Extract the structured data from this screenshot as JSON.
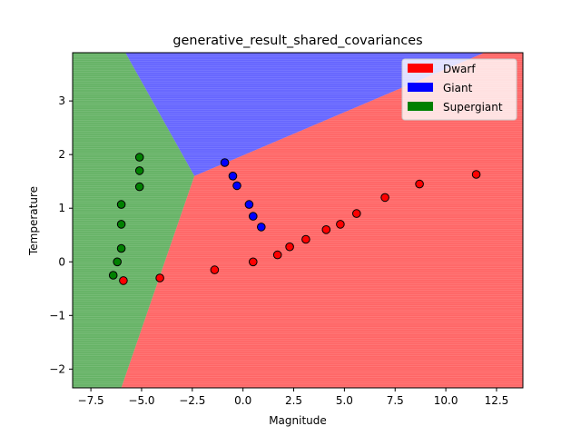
{
  "chart_data": {
    "type": "scatter",
    "title": "generative_result_shared_covariances",
    "xlabel": "Magnitude",
    "ylabel": "Temperature",
    "xlim": [
      -8.4,
      13.8
    ],
    "ylim": [
      -2.35,
      3.9
    ],
    "xticks": [
      -7.5,
      -5.0,
      -2.5,
      0.0,
      2.5,
      5.0,
      7.5,
      10.0,
      12.5
    ],
    "xtick_labels": [
      "−7.5",
      "−5.0",
      "−2.5",
      "0.0",
      "2.5",
      "5.0",
      "7.5",
      "10.0",
      "12.5"
    ],
    "yticks": [
      -2,
      -1,
      0,
      1,
      2,
      3
    ],
    "ytick_labels": [
      "−2",
      "−1",
      "0",
      "1",
      "2",
      "3"
    ],
    "grid": false,
    "legend_position": "top-right",
    "decision_regions": [
      {
        "class": "Dwarf",
        "color": "#ff0000",
        "polygon": [
          [
            -2.4,
            1.6
          ],
          [
            11.9,
            3.9
          ],
          [
            13.8,
            3.9
          ],
          [
            13.8,
            -2.35
          ],
          [
            -6.0,
            -2.35
          ]
        ]
      },
      {
        "class": "Giant",
        "color": "#0000ff",
        "polygon": [
          [
            -5.8,
            3.9
          ],
          [
            11.9,
            3.9
          ],
          [
            -2.4,
            1.6
          ]
        ]
      },
      {
        "class": "Supergiant",
        "color": "#008000",
        "polygon": [
          [
            -8.4,
            3.9
          ],
          [
            -5.8,
            3.9
          ],
          [
            -2.4,
            1.6
          ],
          [
            -6.0,
            -2.35
          ],
          [
            -8.4,
            -2.35
          ]
        ]
      }
    ],
    "series": [
      {
        "name": "Dwarf",
        "color": "#ff0000",
        "points": [
          [
            -5.9,
            -0.35
          ],
          [
            -4.1,
            -0.3
          ],
          [
            -1.4,
            -0.15
          ],
          [
            0.5,
            0.0
          ],
          [
            1.7,
            0.13
          ],
          [
            2.3,
            0.28
          ],
          [
            3.1,
            0.42
          ],
          [
            4.1,
            0.6
          ],
          [
            4.8,
            0.7
          ],
          [
            5.6,
            0.9
          ],
          [
            7.0,
            1.2
          ],
          [
            8.7,
            1.45
          ],
          [
            11.5,
            1.63
          ]
        ]
      },
      {
        "name": "Giant",
        "color": "#0000ff",
        "points": [
          [
            -0.9,
            1.85
          ],
          [
            -0.5,
            1.6
          ],
          [
            -0.3,
            1.42
          ],
          [
            0.3,
            1.07
          ],
          [
            0.5,
            0.85
          ],
          [
            0.9,
            0.65
          ]
        ]
      },
      {
        "name": "Supergiant",
        "color": "#008000",
        "points": [
          [
            -5.1,
            1.95
          ],
          [
            -5.1,
            1.7
          ],
          [
            -5.1,
            1.4
          ],
          [
            -6.0,
            1.07
          ],
          [
            -6.0,
            0.7
          ],
          [
            -6.0,
            0.25
          ],
          [
            -6.2,
            0.0
          ],
          [
            -6.4,
            -0.25
          ]
        ]
      }
    ]
  }
}
